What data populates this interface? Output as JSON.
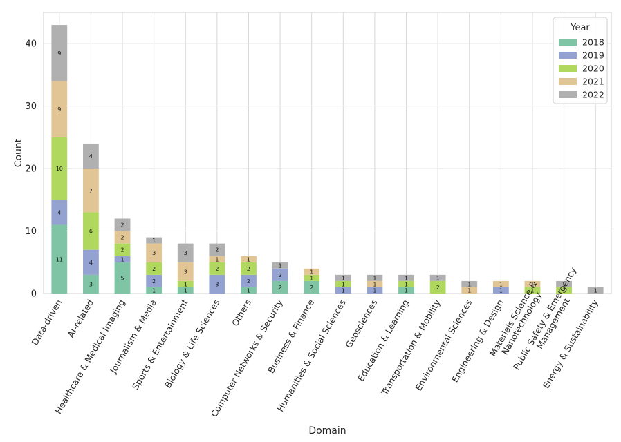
{
  "chart_data": {
    "type": "bar",
    "stacked": true,
    "title": "",
    "xlabel": "Domain",
    "ylabel": "Count",
    "ylim": [
      0,
      45
    ],
    "yticks": [
      0,
      10,
      20,
      30,
      40
    ],
    "grid": true,
    "legend": {
      "title": "Year",
      "placement": "top-right"
    },
    "categories": [
      "Data-driven",
      "AI-related",
      "Healthcare & Medical Imaging",
      "Journalism & Media",
      "Sports & Entertainment",
      "Biology & Life Sciences",
      "Others",
      "Computer Networks & Security",
      "Business & Finance",
      "Humanities & Social Sciences",
      "Geosciences",
      "Education & Learning",
      "Transportation & Mobility",
      "Environmental Sciences",
      "Engineering & Design",
      "Materials Science & Nanotechnology",
      "Public Safety & Emergency Management",
      "Energy & Sustainability"
    ],
    "series": [
      {
        "name": "2018",
        "color": "#7fc4a5",
        "values": [
          11,
          3,
          5,
          1,
          1,
          0,
          1,
          2,
          2,
          0,
          0,
          1,
          0,
          0,
          0,
          0,
          0,
          0
        ]
      },
      {
        "name": "2019",
        "color": "#93a2d0",
        "values": [
          4,
          4,
          1,
          2,
          0,
          3,
          2,
          2,
          0,
          1,
          1,
          0,
          0,
          0,
          1,
          0,
          0,
          0
        ]
      },
      {
        "name": "2020",
        "color": "#b0d85e",
        "values": [
          10,
          6,
          2,
          2,
          1,
          2,
          2,
          0,
          1,
          1,
          0,
          1,
          2,
          0,
          0,
          1,
          1,
          0
        ]
      },
      {
        "name": "2021",
        "color": "#e2c595",
        "values": [
          9,
          7,
          2,
          3,
          3,
          1,
          1,
          0,
          1,
          0,
          1,
          0,
          0,
          1,
          1,
          1,
          0,
          0
        ]
      },
      {
        "name": "2022",
        "color": "#b0b0b0",
        "values": [
          9,
          4,
          2,
          1,
          3,
          2,
          0,
          1,
          0,
          1,
          1,
          1,
          1,
          1,
          0,
          0,
          1,
          1
        ]
      }
    ]
  }
}
